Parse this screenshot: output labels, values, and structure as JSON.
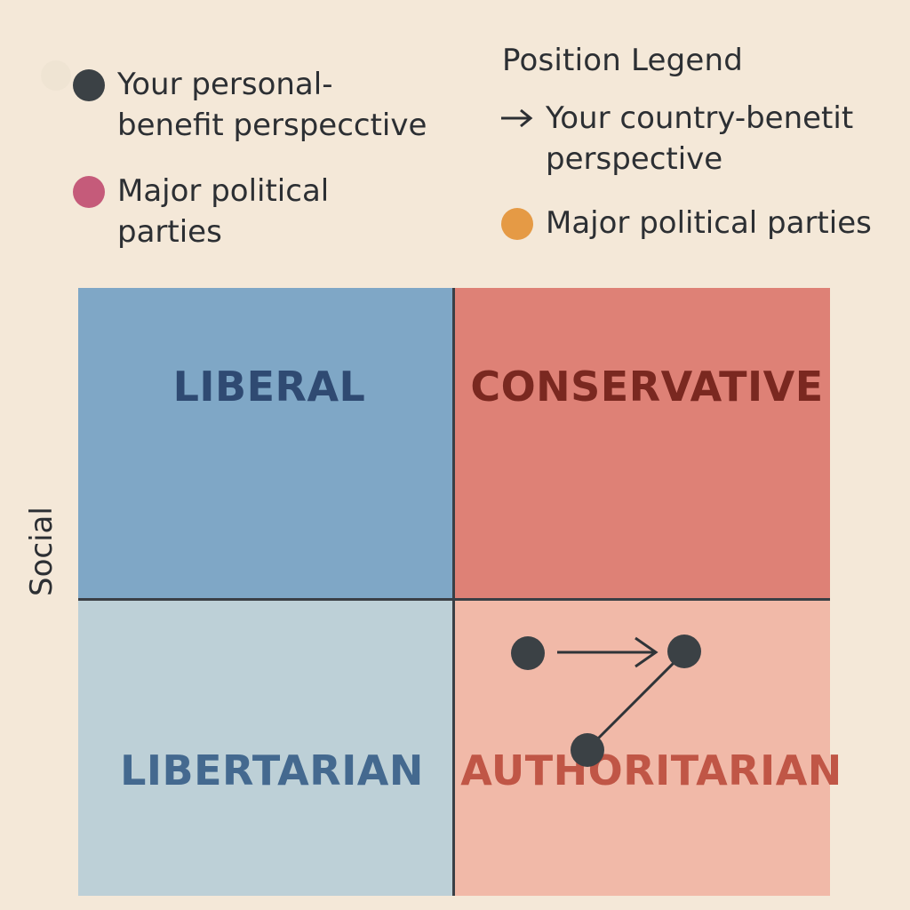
{
  "legend_left": {
    "items": [
      {
        "label": "Your personal-\nbenefit perspecctive",
        "color": "#3b4145",
        "marker": "dot"
      },
      {
        "label": "Major political\nparties",
        "color": "#c55b7a",
        "marker": "dot"
      }
    ]
  },
  "legend_right": {
    "title": "Position Legend",
    "items": [
      {
        "label": "Your country-benetit\nperspective",
        "marker": "arrow",
        "color": "#2c2f33"
      },
      {
        "label": "Major political parties",
        "color": "#e59a45",
        "marker": "dot"
      }
    ]
  },
  "quadrants": {
    "top_left": "LIBERAL",
    "top_right": "CONSERVATIVE",
    "bottom_left": "LIBERTARIAN",
    "bottom_right": "AUTHORITARIAN"
  },
  "colors": {
    "background": "#f4e8d8",
    "liberal": "#7fa7c6",
    "conservative": "#de8176",
    "libertarian": "#bdd0d7",
    "authoritarian": "#f1b9a8",
    "marker": "#3b4145"
  },
  "axis": {
    "y_label": "Social"
  }
}
